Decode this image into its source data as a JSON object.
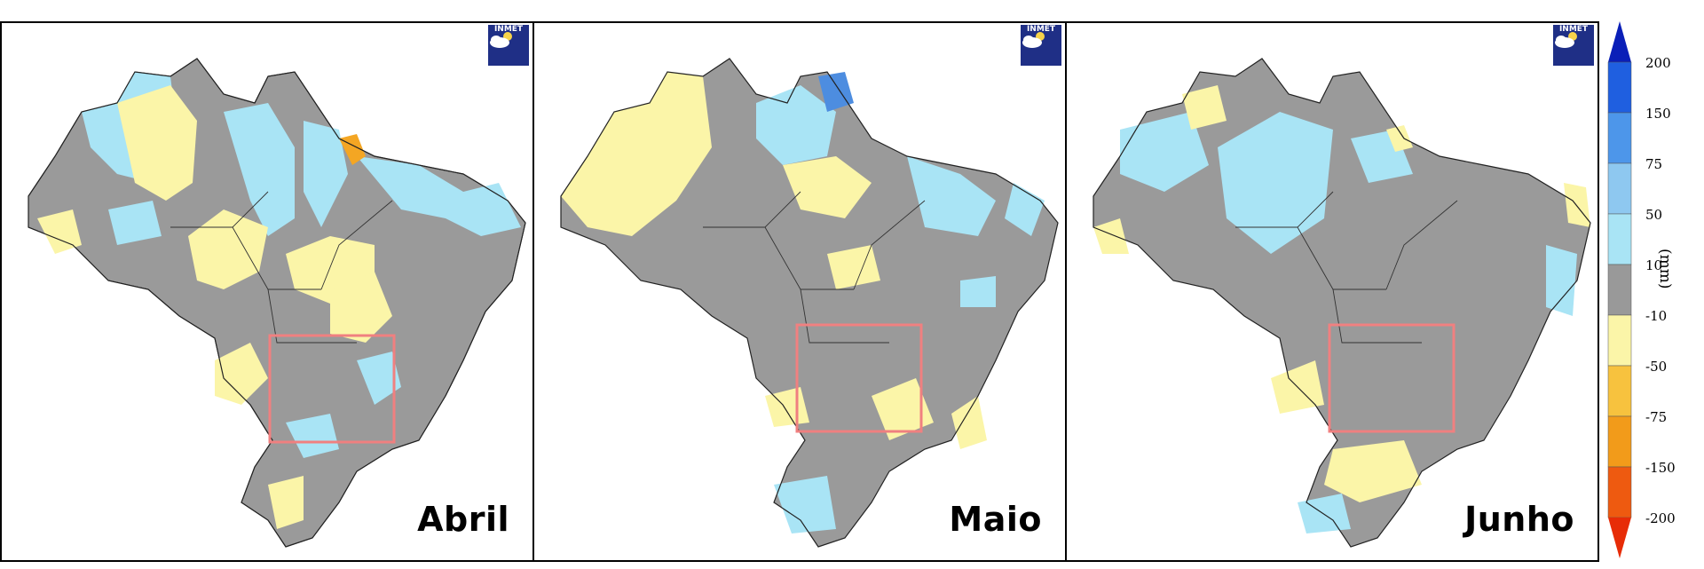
{
  "panels": [
    {
      "month": "Abril",
      "logo": "INMET"
    },
    {
      "month": "Maio",
      "logo": "INMET"
    },
    {
      "month": "Junho",
      "logo": "INMET"
    }
  ],
  "legend": {
    "unit": "(mm)",
    "ticks": [
      "200",
      "150",
      "75",
      "50",
      "10",
      "-10",
      "-10",
      "-50",
      "-75",
      "-150",
      "-200"
    ],
    "colors": [
      "#0a1fb8",
      "#1f5fe0",
      "#4d96ea",
      "#8ec8f0",
      "#a9e4f5",
      "#999999",
      "#fbf5a8",
      "#f7c23e",
      "#f29b1a",
      "#ee5a10",
      "#e72c07"
    ]
  },
  "colors": {
    "gray": "#9a9a9a",
    "light_blue": "#a9e4f5",
    "blue": "#6fb4ee",
    "dark_blue": "#4d8de0",
    "yellow": "#fbf5a8",
    "orange": "#f4a623",
    "highlight_box": "#f08080"
  }
}
